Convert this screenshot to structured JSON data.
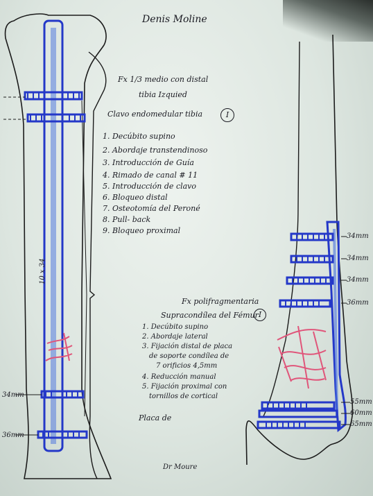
{
  "header": {
    "author": "Denis Moline"
  },
  "left_procedure": {
    "title_line1": "Fx 1/3 medio con distal",
    "title_line2": "tibia Izquied",
    "title_line3": "Clavo endomedular tibia",
    "badge": "I",
    "steps": [
      "1. Decúbito supino",
      "2. Abordaje transtendinoso",
      "3. Introducción de Guía",
      "4. Rimado de canal # 11",
      "5. Introducción de clavo",
      "6. Bloqueo distal",
      "7. Osteotomía del Peroné",
      "8. Pull- back",
      "9. Bloqueo proximal"
    ],
    "nail_label": "10 x 34",
    "screw_labels": [
      "34mm",
      "36mm"
    ]
  },
  "right_procedure": {
    "title_line1": "Fx polifragmentaria",
    "title_line2": "Supracondílea del Fémur",
    "badge": "I",
    "steps": [
      "1. Decúbito supino",
      "2. Abordaje lateral",
      "3. Fijación distal de placa",
      "de soporte condílea de",
      "7 orificios 4,5mm",
      "4. Reducción manual",
      "5. Fijación proximal con",
      "tornillos de cortical"
    ],
    "placa_note": "Placa de",
    "screw_labels_top": [
      "34mm",
      "34mm",
      "34mm",
      "36mm"
    ],
    "screw_labels_bottom": [
      "55mm",
      "60mm",
      "65mm"
    ]
  },
  "footer": {
    "signature": "Dr Moure"
  },
  "colors": {
    "ink": "#1a1a22",
    "implant_blue": "#2438c8",
    "fracture_pink": "#e0557a",
    "paper": "#e6ede8"
  }
}
